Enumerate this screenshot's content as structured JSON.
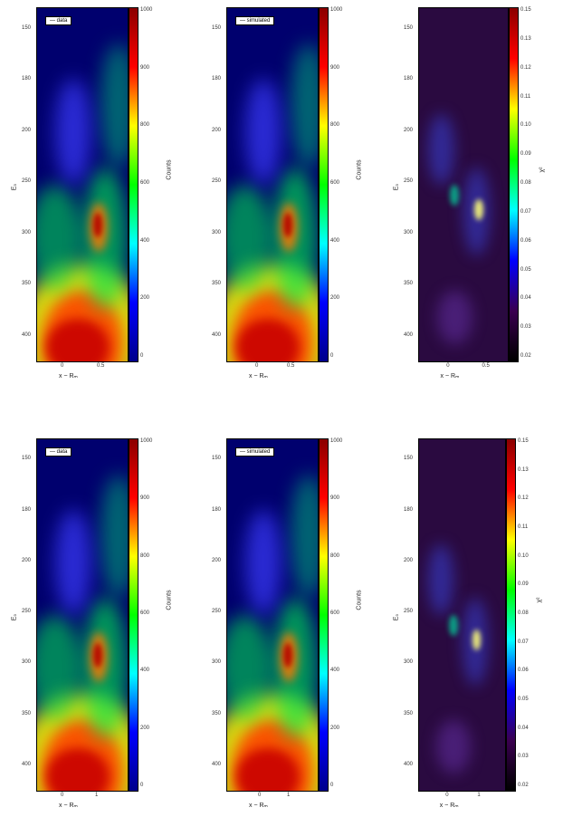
{
  "chart_data": [
    {
      "type": "heatmap",
      "legend": "data",
      "ylabel": "E₀",
      "xlabel": "x ~ Rₘ",
      "x_ticks": [
        "0",
        "0.5"
      ],
      "y_ticks": [
        "150",
        "180",
        "200",
        "250",
        "300",
        "350",
        "400"
      ],
      "colorbar_label": "Counts",
      "colorbar_ticks": [
        "1000",
        "900",
        "800",
        "600",
        "400",
        "200",
        "0"
      ],
      "colorbar_colors": [
        "#8b0000",
        "#ff0000",
        "#ffff00",
        "#00ff00",
        "#00ffff",
        "#0000ff",
        "#00008b"
      ]
    },
    {
      "type": "heatmap",
      "legend": "simulated",
      "ylabel": "",
      "xlabel": "x ~ Rₘ",
      "x_ticks": [
        "0",
        "0.5"
      ],
      "y_ticks": [
        "150",
        "180",
        "200",
        "250",
        "300",
        "350",
        "400"
      ],
      "colorbar_label": "Counts",
      "colorbar_ticks": [
        "1000",
        "900",
        "800",
        "600",
        "400",
        "200",
        "0"
      ],
      "colorbar_colors": [
        "#8b0000",
        "#ff0000",
        "#ffff00",
        "#00ff00",
        "#00ffff",
        "#0000ff",
        "#00008b"
      ]
    },
    {
      "type": "heatmap",
      "legend": "",
      "ylabel": "E₀",
      "xlabel": "x ~ Rₘ",
      "x_ticks": [
        "0",
        "0.5"
      ],
      "y_ticks": [
        "150",
        "180",
        "200",
        "250",
        "300",
        "350",
        "400"
      ],
      "colorbar_label": "χ²",
      "colorbar_ticks": [
        "0.15",
        "0.13",
        "0.12",
        "0.11",
        "0.10",
        "0.09",
        "0.08",
        "0.07",
        "0.06",
        "0.05",
        "0.04",
        "0.03",
        "0.02"
      ],
      "colorbar_colors": [
        "#8b0000",
        "#ff0000",
        "#ffff00",
        "#00ff00",
        "#00ffff",
        "#0000ff",
        "#3a0050",
        "#000000"
      ]
    },
    {
      "type": "heatmap",
      "legend": "data",
      "ylabel": "E₀",
      "xlabel": "x ~ Rₘ",
      "x_ticks": [
        "0",
        "1"
      ],
      "y_ticks": [
        "150",
        "180",
        "200",
        "250",
        "300",
        "350",
        "400"
      ],
      "colorbar_label": "Counts",
      "colorbar_ticks": [
        "1000",
        "900",
        "800",
        "600",
        "400",
        "200",
        "0"
      ],
      "colorbar_colors": [
        "#8b0000",
        "#ff0000",
        "#ffff00",
        "#00ff00",
        "#00ffff",
        "#0000ff",
        "#00008b"
      ]
    },
    {
      "type": "heatmap",
      "legend": "simulated",
      "ylabel": "",
      "xlabel": "x ~ Rₘ",
      "x_ticks": [
        "0",
        "1"
      ],
      "y_ticks": [
        "150",
        "180",
        "200",
        "250",
        "300",
        "350",
        "400"
      ],
      "colorbar_label": "Counts",
      "colorbar_ticks": [
        "1000",
        "900",
        "800",
        "600",
        "400",
        "200",
        "0"
      ],
      "colorbar_colors": [
        "#8b0000",
        "#ff0000",
        "#ffff00",
        "#00ff00",
        "#00ffff",
        "#0000ff",
        "#00008b"
      ]
    },
    {
      "type": "heatmap",
      "legend": "",
      "ylabel": "E₀",
      "xlabel": "x ~ Rₘ",
      "x_ticks": [
        "0",
        "1"
      ],
      "y_ticks": [
        "150",
        "180",
        "200",
        "250",
        "300",
        "350",
        "400"
      ],
      "colorbar_label": "χ²",
      "colorbar_ticks": [
        "0.15",
        "0.13",
        "0.12",
        "0.11",
        "0.10",
        "0.09",
        "0.08",
        "0.07",
        "0.06",
        "0.05",
        "0.04",
        "0.03",
        "0.02"
      ],
      "colorbar_colors": [
        "#8b0000",
        "#ff0000",
        "#ffff00",
        "#00ff00",
        "#00ffff",
        "#0000ff",
        "#3a0050",
        "#000000"
      ]
    }
  ]
}
